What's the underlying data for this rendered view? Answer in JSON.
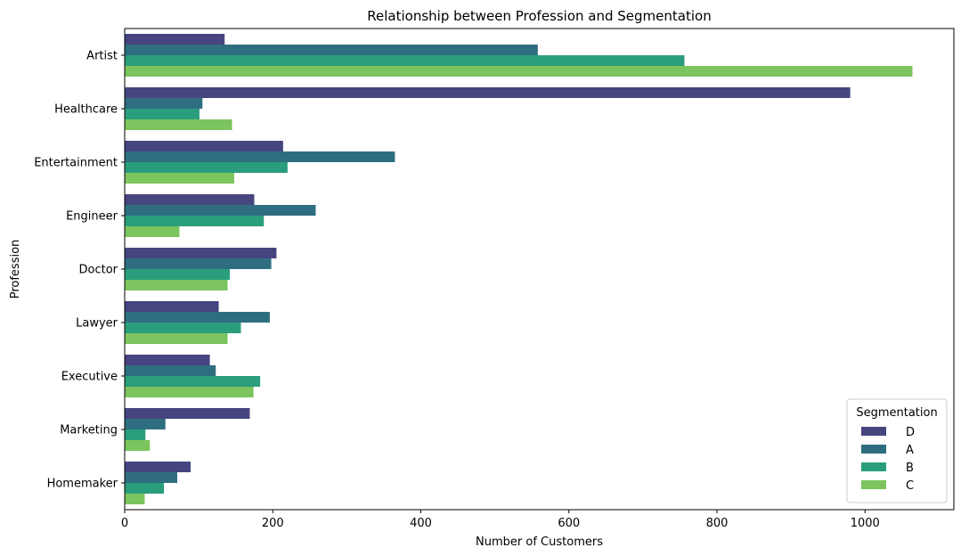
{
  "chart_data": {
    "type": "bar",
    "orientation": "horizontal",
    "title": "Relationship between Profession and Segmentation",
    "xlabel": "Number of Customers",
    "ylabel": "Profession",
    "categories": [
      "Artist",
      "Healthcare",
      "Entertainment",
      "Engineer",
      "Doctor",
      "Lawyer",
      "Executive",
      "Marketing",
      "Homemaker"
    ],
    "xlim": [
      0,
      1120
    ],
    "xticks": [
      0,
      200,
      400,
      600,
      800,
      1000
    ],
    "grid": false,
    "legend": {
      "title": "Segmentation",
      "placement": "lower-right"
    },
    "series": [
      {
        "name": "D",
        "color": "#46457f",
        "values": [
          135,
          980,
          214,
          175,
          205,
          127,
          115,
          169,
          89
        ]
      },
      {
        "name": "A",
        "color": "#2f6e80",
        "values": [
          558,
          105,
          365,
          258,
          198,
          196,
          123,
          55,
          71
        ]
      },
      {
        "name": "B",
        "color": "#2a9d7c",
        "values": [
          756,
          101,
          220,
          188,
          142,
          157,
          183,
          28,
          53
        ]
      },
      {
        "name": "C",
        "color": "#7cc45e",
        "values": [
          1064,
          145,
          148,
          74,
          139,
          139,
          174,
          34,
          27
        ]
      }
    ]
  }
}
